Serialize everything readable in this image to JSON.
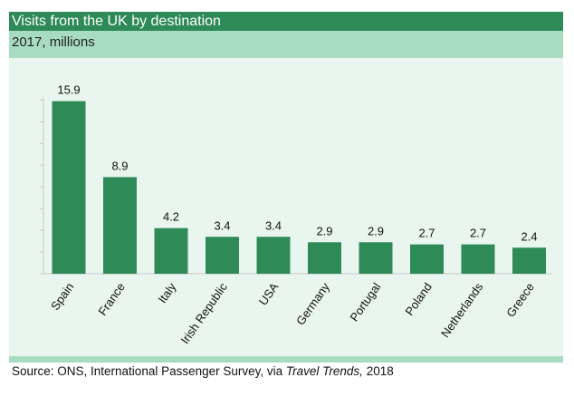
{
  "header": {
    "title": "Visits from the UK by destination",
    "subtitle": "2017, millions"
  },
  "source": {
    "prefix": "Source: ONS, International Passenger Survey, via ",
    "publication": "Travel Trends,",
    "year": " 2018"
  },
  "colors": {
    "bar": "#2e8a57",
    "header_dark": "#2e8a57",
    "header_light": "#a8dcc0",
    "plot_background": "#e9f6ef"
  },
  "chart_data": {
    "type": "bar",
    "title": "Visits from the UK by destination",
    "subtitle": "2017, millions",
    "categories": [
      "Spain",
      "France",
      "Italy",
      "Irish Republic",
      "USA",
      "Germany",
      "Portugal",
      "Poland",
      "Netherlands",
      "Greece"
    ],
    "values": [
      15.9,
      8.9,
      4.2,
      3.4,
      3.4,
      2.9,
      2.9,
      2.7,
      2.7,
      2.4
    ],
    "labels": [
      "15.9",
      "8.9",
      "4.2",
      "3.4",
      "3.4",
      "2.9",
      "2.9",
      "2.7",
      "2.7",
      "2.4"
    ],
    "xlabel": "",
    "ylabel": "",
    "ylim": [
      0,
      16.2
    ],
    "y_tick_step": 2,
    "y_tick_labels_shown": false,
    "grid": false,
    "data_labels": "above-bars",
    "x_tick_label_rotation": -55
  }
}
